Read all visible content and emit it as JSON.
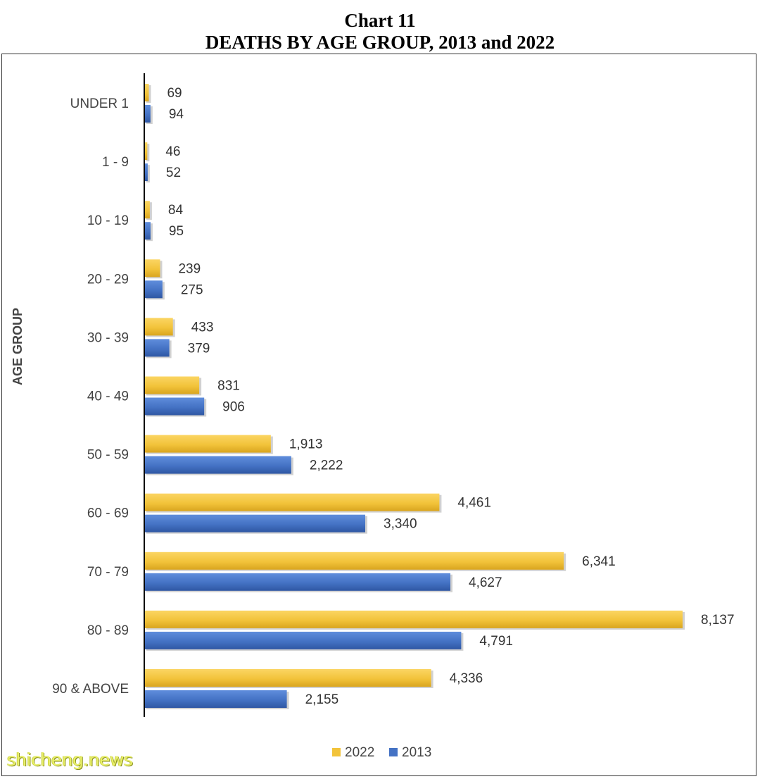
{
  "header": {
    "title": "Chart 11",
    "subtitle": "DEATHS BY AGE GROUP, 2013 and 2022"
  },
  "watermark": "shicheng.news",
  "chart_data": {
    "type": "bar",
    "orientation": "horizontal",
    "title": "Chart 11",
    "subtitle": "DEATHS BY AGE GROUP, 2013 and 2022",
    "ylabel": "AGE GROUP",
    "xlabel": "",
    "categories": [
      "UNDER 1",
      "1 - 9",
      "10 - 19",
      "20 - 29",
      "30 - 39",
      "40 - 49",
      "50 - 59",
      "60 - 69",
      "70 - 79",
      "80 - 89",
      "90 & ABOVE"
    ],
    "series": [
      {
        "name": "2022",
        "color": "#f2c33a",
        "values": [
          69,
          46,
          84,
          239,
          433,
          831,
          1913,
          4461,
          6341,
          8137,
          4336
        ],
        "labels": [
          "69",
          "46",
          "84",
          "239",
          "433",
          "831",
          "1,913",
          "4,461",
          "6,341",
          "8,137",
          "4,336"
        ]
      },
      {
        "name": "2013",
        "color": "#4472c4",
        "values": [
          94,
          52,
          95,
          275,
          379,
          906,
          2222,
          3340,
          4627,
          4791,
          2155
        ],
        "labels": [
          "94",
          "52",
          "95",
          "275",
          "379",
          "906",
          "2,222",
          "3,340",
          "4,627",
          "4,791",
          "2,155"
        ]
      }
    ],
    "xlim": [
      0,
      8137
    ],
    "grid": false,
    "axis_values_shown": false,
    "legend_position": "bottom"
  }
}
